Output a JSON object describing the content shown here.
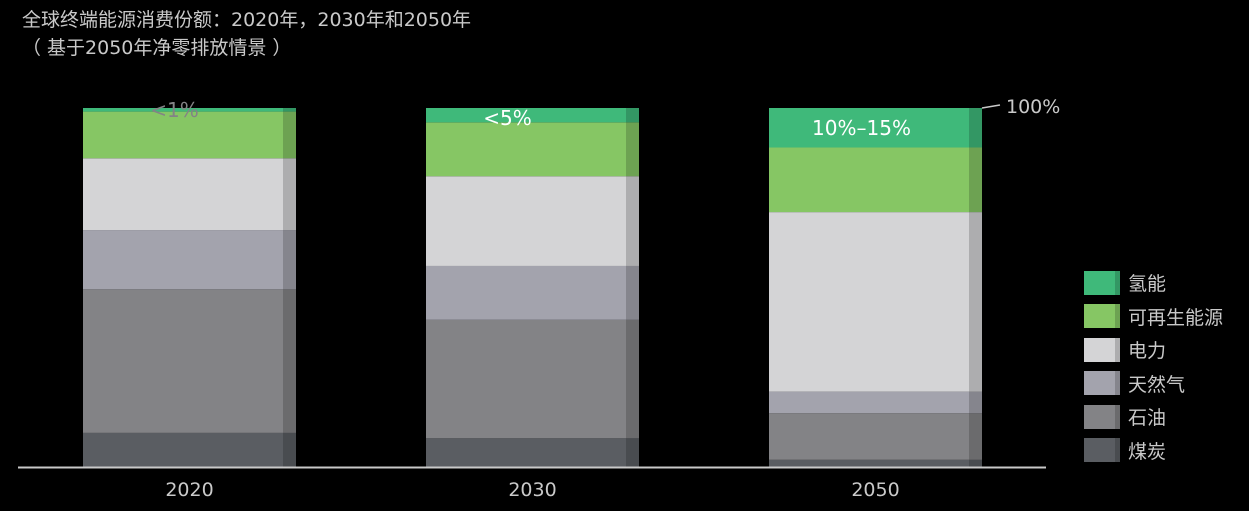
{
  "title": {
    "line1": "全球终端能源消费份额：2020年，2030年和2050年",
    "line2": "（ 基于2050年净零排放情景 ）"
  },
  "chart_data": {
    "type": "bar",
    "stacked": true,
    "categories": [
      "2020",
      "2030",
      "2050"
    ],
    "ylim": [
      0,
      100
    ],
    "grid": false,
    "legend_position": "right",
    "series": [
      {
        "name": "煤炭",
        "color": "#5a5d62",
        "values": [
          9.5,
          8,
          2
        ]
      },
      {
        "name": "石油",
        "color": "#838386",
        "values": [
          40,
          33,
          13
        ]
      },
      {
        "name": "天然气",
        "color": "#a3a3ad",
        "values": [
          16.5,
          15,
          6
        ]
      },
      {
        "name": "电力",
        "color": "#d4d4d6",
        "values": [
          20,
          25,
          50
        ]
      },
      {
        "name": "可再生能源",
        "color": "#86c664",
        "values": [
          13,
          15,
          18
        ]
      },
      {
        "name": "氢能",
        "color": "#3fb97a",
        "values": [
          1,
          4,
          11
        ]
      }
    ],
    "annotations": [
      {
        "category": "2020",
        "text": "<1%"
      },
      {
        "category": "2030",
        "text": "<5%"
      },
      {
        "category": "2050",
        "text": "10%–15%"
      }
    ],
    "top_marker": "100%"
  },
  "legend": {
    "items": [
      {
        "label": "氢能",
        "color": "#3fb97a"
      },
      {
        "label": "可再生能源",
        "color": "#86c664"
      },
      {
        "label": "电力",
        "color": "#d4d4d6"
      },
      {
        "label": "天然气",
        "color": "#a3a3ad"
      },
      {
        "label": "石油",
        "color": "#838386"
      },
      {
        "label": "煤炭",
        "color": "#5a5d62"
      }
    ]
  }
}
